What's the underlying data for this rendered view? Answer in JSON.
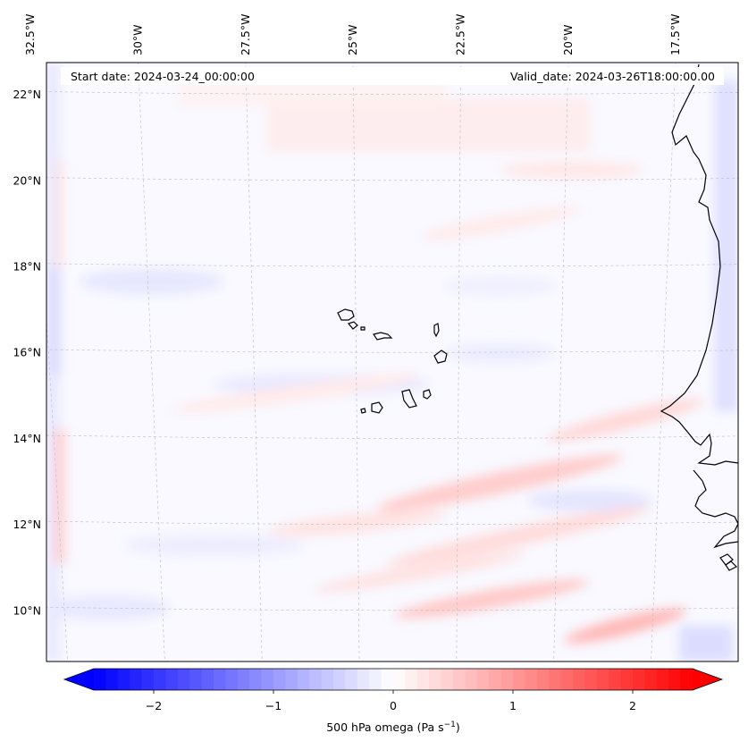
{
  "header": {
    "start_date": "Start date: 2024-03-24_00:00:00",
    "valid_date": "Valid_date: 2024-03-26T18:00:00.00"
  },
  "map": {
    "projection": "Lambert conformal",
    "lon_labels": [
      "32.5°W",
      "30°W",
      "27.5°W",
      "25°W",
      "22.5°W",
      "20°W",
      "17.5°W"
    ],
    "lon_values": [
      -32.5,
      -30,
      -27.5,
      -25,
      -22.5,
      -20,
      -17.5
    ],
    "lat_labels": [
      "22°N",
      "20°N",
      "18°N",
      "16°N",
      "14°N",
      "12°N",
      "10°N"
    ],
    "lat_values": [
      22,
      20,
      18,
      16,
      14,
      12,
      10
    ],
    "gridlines": true,
    "coastline_color": "#000000",
    "features": [
      "Cape Verde islands",
      "West African coastline (Senegal, Gambia, Guinea-Bissau)"
    ]
  },
  "colorbar": {
    "colormap": "bwr",
    "min": -2.5,
    "max": 2.5,
    "extend": "both",
    "ticks": [
      -2,
      -1,
      0,
      1,
      2
    ],
    "tick_labels": [
      "−2",
      "−1",
      "0",
      "1",
      "2"
    ],
    "label_main": "500 hPa omega (Pa s",
    "label_exp": "−1",
    "label_end": ")",
    "low_color": "#0000ff",
    "mid_color": "#ffffff",
    "high_color": "#ff0000"
  }
}
